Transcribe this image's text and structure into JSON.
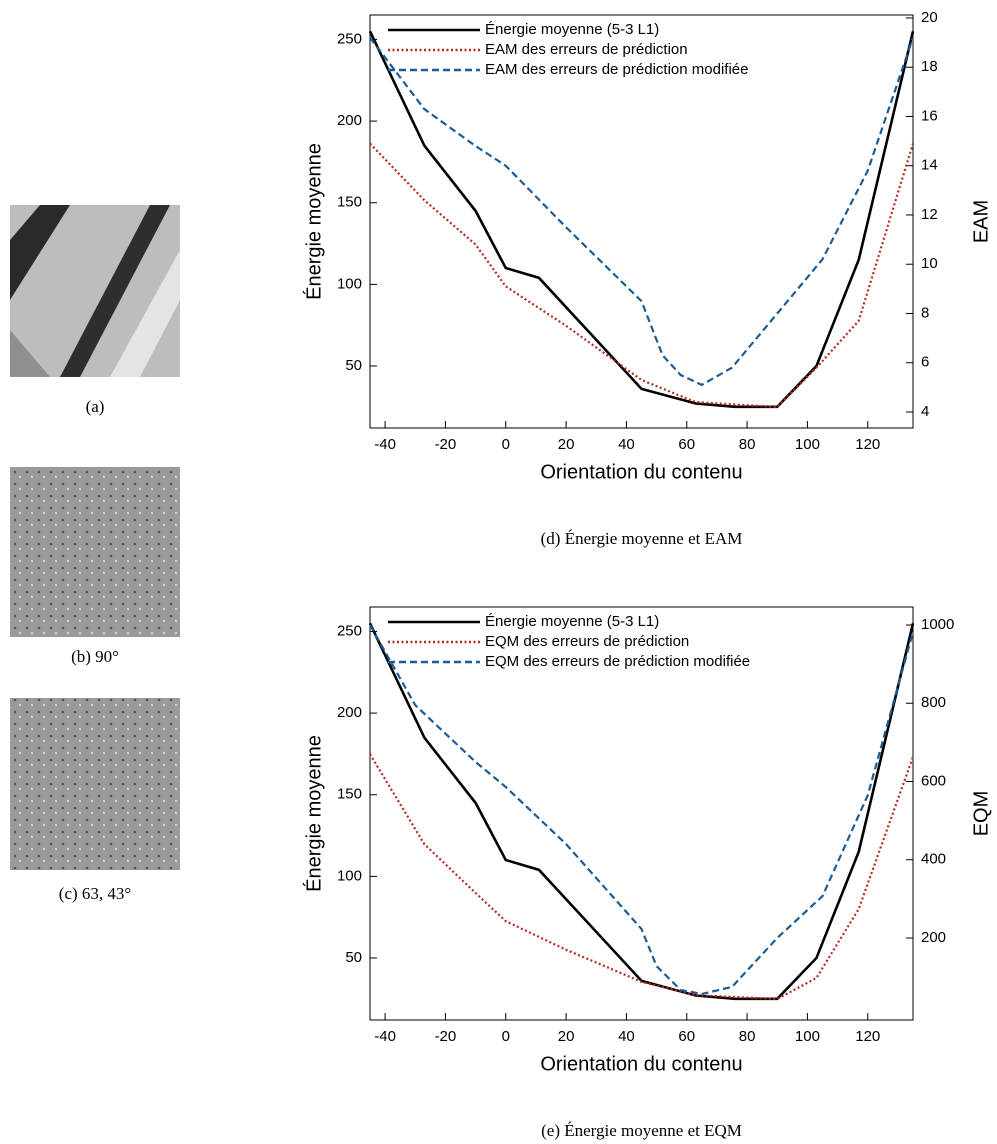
{
  "figures": [
    {
      "caption": "(a)"
    },
    {
      "caption": "(b) 90°"
    },
    {
      "caption": "(c) 63, 43°"
    }
  ],
  "chart_data": [
    {
      "type": "line",
      "caption": "(d) Énergie moyenne et EAM",
      "x_label": "Orientation du contenu",
      "y_label": "Énergie moyenne",
      "y2_label": "EAM",
      "legend": "upper left",
      "xlim": [
        -45,
        135
      ],
      "xticks": [
        -40,
        -20,
        0,
        20,
        40,
        60,
        80,
        100,
        120
      ],
      "ylim": [
        12,
        265
      ],
      "yticks": [
        50,
        100,
        150,
        200,
        250
      ],
      "y2lim": [
        3.35,
        20.12
      ],
      "y2ticks": [
        4,
        6,
        8,
        10,
        12,
        14,
        16,
        18,
        20
      ],
      "series": [
        {
          "name": "Énergie moyenne (5-3 L1)",
          "color": "#000000",
          "style": "solid",
          "x": [
            -45,
            -27,
            -10,
            0,
            11,
            45,
            63,
            76,
            90,
            103,
            117,
            135
          ],
          "values": [
            255,
            185,
            145,
            110,
            104,
            36,
            27,
            25,
            25,
            50,
            115,
            255
          ]
        },
        {
          "name": "EAM des erreurs de prédiction",
          "color": "#b22a1e",
          "style": "dotted",
          "axis": "y2",
          "x": [
            -45,
            -27,
            -10,
            0,
            20,
            45,
            63,
            90,
            103,
            117,
            135
          ],
          "values": [
            14.9,
            12.6,
            10.8,
            9.1,
            7.5,
            5.3,
            4.4,
            4.2,
            5.8,
            7.7,
            14.9
          ]
        },
        {
          "name": "EAM des erreurs de prédiction modifiée",
          "color": "#1c5c96",
          "style": "dashed",
          "axis": "y2",
          "x": [
            -45,
            -27,
            -10,
            0,
            20,
            45,
            52,
            58,
            65,
            75,
            90,
            105,
            120,
            135
          ],
          "values": [
            19.2,
            16.3,
            14.8,
            14.0,
            11.5,
            8.5,
            6.3,
            5.5,
            5.1,
            5.8,
            8.0,
            10.2,
            13.8,
            19.2
          ]
        }
      ]
    },
    {
      "type": "line",
      "caption": "(e) Énergie moyenne et EQM",
      "x_label": "Orientation du contenu",
      "y_label": "Énergie moyenne",
      "y2_label": "EQM",
      "legend": "upper left",
      "xlim": [
        -45,
        135
      ],
      "xticks": [
        -40,
        -20,
        0,
        20,
        40,
        60,
        80,
        100,
        120
      ],
      "ylim": [
        12,
        265
      ],
      "yticks": [
        50,
        100,
        150,
        200,
        250
      ],
      "y2lim": [
        -9.6,
        1046
      ],
      "y2ticks": [
        200,
        400,
        600,
        800,
        1000
      ],
      "series": [
        {
          "name": "Énergie moyenne (5-3 L1)",
          "color": "#000000",
          "style": "solid",
          "x": [
            -45,
            -27,
            -10,
            0,
            11,
            45,
            63,
            76,
            90,
            103,
            117,
            135
          ],
          "values": [
            255,
            185,
            145,
            110,
            104,
            36,
            27,
            25,
            25,
            50,
            115,
            255
          ]
        },
        {
          "name": "EQM des erreurs de prédiction",
          "color": "#b22a1e",
          "style": "dotted",
          "axis": "y2",
          "x": [
            -45,
            -27,
            -10,
            0,
            20,
            45,
            63,
            90,
            103,
            117,
            135
          ],
          "values": [
            670,
            440,
            315,
            243,
            170,
            88,
            54,
            44,
            98,
            274,
            663
          ]
        },
        {
          "name": "EQM des erreurs de prédiction modifiée",
          "color": "#1c5c96",
          "style": "dashed",
          "axis": "y2",
          "x": [
            -45,
            -30,
            -10,
            0,
            20,
            45,
            50,
            58,
            65,
            75,
            90,
            105,
            120,
            135
          ],
          "values": [
            1000,
            795,
            650,
            586,
            440,
            223,
            128,
            67,
            57,
            75,
            200,
            307,
            565,
            982
          ]
        }
      ]
    }
  ]
}
